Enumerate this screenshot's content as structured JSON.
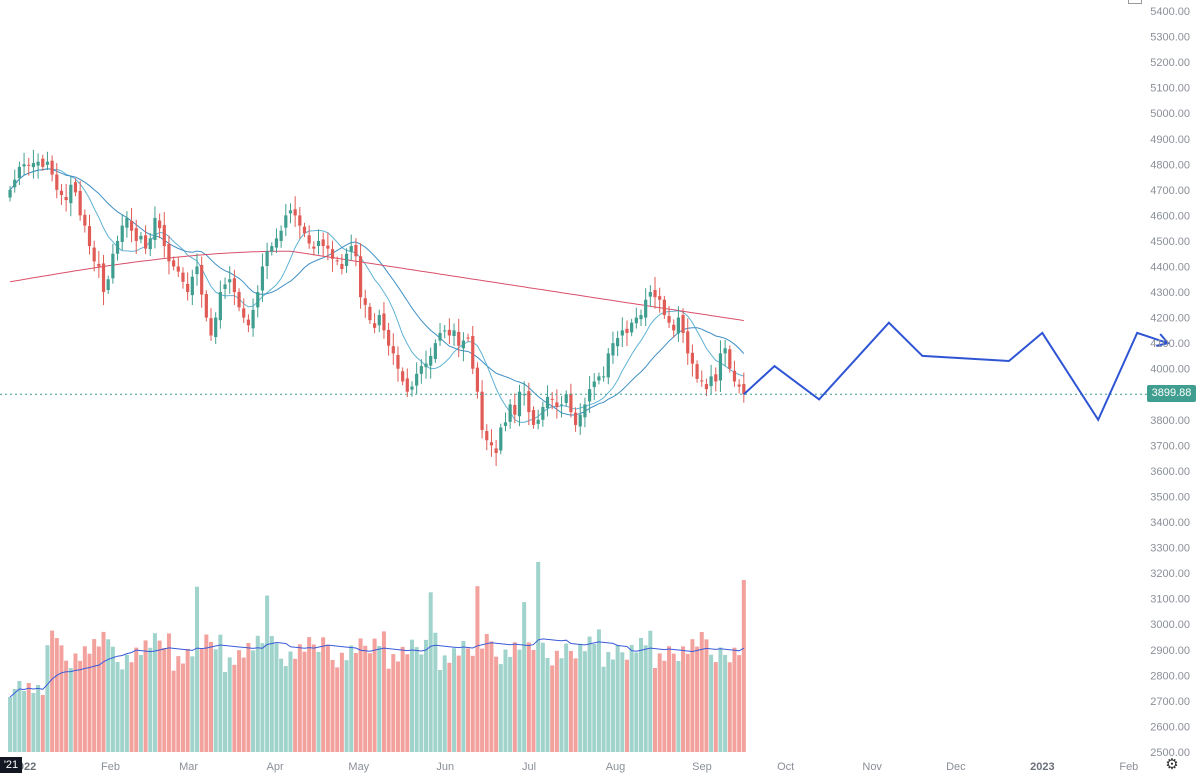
{
  "chart_data": {
    "type": "candlestick",
    "y_axis": {
      "ylim": [
        2500,
        5400
      ],
      "step": 100,
      "tick_labels": [
        "5400.00",
        "5300.00",
        "5200.00",
        "5100.00",
        "5000.00",
        "4900.00",
        "4800.00",
        "4700.00",
        "4600.00",
        "4500.00",
        "4400.00",
        "4300.00",
        "4200.00",
        "4100.00",
        "4000.00",
        "3900.00",
        "3800.00",
        "3700.00",
        "3600.00",
        "3500.00",
        "3400.00",
        "3300.00",
        "3200.00",
        "3100.00",
        "3000.00",
        "2900.00",
        "2800.00",
        "2700.00",
        "2600.00",
        "2500.00"
      ]
    },
    "x_axis": {
      "tick_labels": [
        {
          "label": "2022",
          "date": "2022-01-01",
          "bold": true
        },
        {
          "label": "Feb",
          "date": "2022-02-01"
        },
        {
          "label": "Mar",
          "date": "2022-03-01"
        },
        {
          "label": "Apr",
          "date": "2022-04-01"
        },
        {
          "label": "May",
          "date": "2022-05-01"
        },
        {
          "label": "Jun",
          "date": "2022-06-01"
        },
        {
          "label": "Jul",
          "date": "2022-07-01"
        },
        {
          "label": "Aug",
          "date": "2022-08-01"
        },
        {
          "label": "Sep",
          "date": "2022-09-01"
        },
        {
          "label": "Oct",
          "date": "2022-10-01"
        },
        {
          "label": "Nov",
          "date": "2022-11-01"
        },
        {
          "label": "Dec",
          "date": "2022-12-01"
        },
        {
          "label": "2023",
          "date": "2023-01-01",
          "bold": true
        },
        {
          "label": "Feb",
          "date": "2023-02-01"
        }
      ]
    },
    "price_closes": [
      4700,
      4740,
      4790,
      4800,
      4795,
      4805,
      4810,
      4790,
      4810,
      4760,
      4700,
      4680,
      4660,
      4720,
      4690,
      4600,
      4560,
      4480,
      4420,
      4400,
      4300,
      4350,
      4450,
      4500,
      4560,
      4590,
      4540,
      4500,
      4520,
      4470,
      4510,
      4590,
      4550,
      4480,
      4420,
      4400,
      4380,
      4340,
      4300,
      4360,
      4400,
      4290,
      4200,
      4130,
      4200,
      4300,
      4330,
      4350,
      4300,
      4240,
      4200,
      4170,
      4230,
      4300,
      4400,
      4460,
      4480,
      4510,
      4540,
      4600,
      4620,
      4600,
      4560,
      4530,
      4490,
      4470,
      4500,
      4480,
      4470,
      4430,
      4420,
      4390,
      4450,
      4480,
      4440,
      4280,
      4250,
      4190,
      4160,
      4210,
      4150,
      4090,
      4060,
      4000,
      3950,
      3910,
      3930,
      3980,
      4010,
      4020,
      4050,
      4100,
      4140,
      4150,
      4130,
      4150,
      4090,
      4110,
      4120,
      4000,
      3910,
      3760,
      3720,
      3700,
      3670,
      3770,
      3790,
      3860,
      3820,
      3910,
      3900,
      3830,
      3780,
      3800,
      3850,
      3890,
      3880,
      3850,
      3860,
      3900,
      3830,
      3780,
      3820,
      3860,
      3920,
      3950,
      3970,
      3970,
      4060,
      4100,
      4120,
      4150,
      4140,
      4180,
      4200,
      4210,
      4270,
      4300,
      4280,
      4270,
      4210,
      4180,
      4150,
      4200,
      4140,
      4060,
      4020,
      3960,
      3950,
      3920,
      3970,
      3950,
      4060,
      4080,
      4000,
      3950,
      3930,
      3900
    ],
    "candle_date_range": [
      "2021-12-27",
      "2022-09-16"
    ],
    "last_price": "3899.88",
    "forecast_path": [
      {
        "date": "2022-09-16",
        "price": 3900
      },
      {
        "date": "2022-09-27",
        "price": 4010
      },
      {
        "date": "2022-10-13",
        "price": 3880
      },
      {
        "date": "2022-11-07",
        "price": 4180
      },
      {
        "date": "2022-11-19",
        "price": 4050
      },
      {
        "date": "2022-12-20",
        "price": 4030
      },
      {
        "date": "2023-01-01",
        "price": 4140
      },
      {
        "date": "2023-01-21",
        "price": 3800
      },
      {
        "date": "2023-02-04",
        "price": 4140
      },
      {
        "date": "2023-02-15",
        "price": 4100
      }
    ],
    "moving_averages": [
      {
        "period": 10,
        "color": "#5fb3d4"
      },
      {
        "period": 20,
        "color": "#3f8fc4"
      },
      {
        "period": 200,
        "color": "#d8506a"
      }
    ],
    "volume_ma_color": "#3a5bd9",
    "colors": {
      "up": "#3f9e8f",
      "down": "#e05b55",
      "volume_up": "#9fd3cc",
      "volume_down": "#f2a19d",
      "forecast": "#2f55d4",
      "last_price_line": "#3f9e8f"
    }
  },
  "ui": {
    "left_badge": "'21",
    "settings_icon": "gear-icon"
  }
}
